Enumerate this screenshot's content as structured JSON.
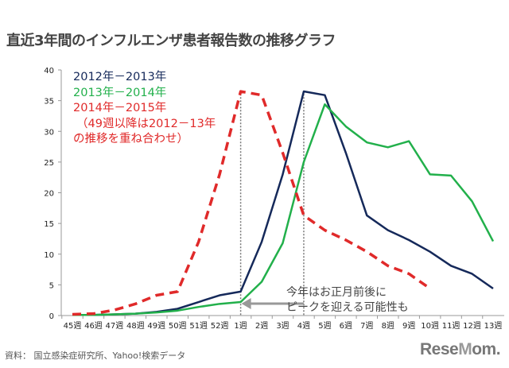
{
  "title": "直近3年間のインフルエンザ患者報告数の推移グラフ",
  "source": "資料： 国立感染症研究所、Yahoo!検索データ",
  "logo": "ReseMom",
  "chart_data": {
    "type": "line",
    "title": "直近3年間のインフルエンザ患者報告数の推移グラフ",
    "categories": [
      "45週",
      "46週",
      "47週",
      "48週",
      "49週",
      "50週",
      "51週",
      "52週",
      "1週",
      "2週",
      "3週",
      "4週",
      "5週",
      "6週",
      "7週",
      "8週",
      "9週",
      "10週",
      "11週",
      "12週",
      "13週"
    ],
    "ylim": [
      0,
      40
    ],
    "yticks": [
      0,
      5,
      10,
      15,
      20,
      25,
      30,
      35,
      40
    ],
    "grid": false,
    "legend_placement": "top-left",
    "series": [
      {
        "name": "2012年－2013年",
        "color": "#15295a",
        "style": "solid",
        "values": [
          0.1,
          0.1,
          0.2,
          0.3,
          0.6,
          1.1,
          2.2,
          3.3,
          3.9,
          12,
          23,
          36.5,
          35.9,
          26.5,
          16.3,
          13.9,
          12.3,
          10.4,
          8.1,
          6.8,
          4.4
        ]
      },
      {
        "name": "2013年－2014年",
        "color": "#22b04b",
        "style": "solid",
        "values": [
          0.1,
          0.1,
          0.2,
          0.3,
          0.5,
          0.8,
          1.4,
          1.9,
          2.2,
          5.5,
          11.8,
          25,
          34.4,
          30.8,
          28.2,
          27.4,
          28.4,
          23,
          22.8,
          18.6,
          12.1
        ]
      },
      {
        "name": "2014年－2015年",
        "color": "#e02a2a",
        "style": "dashed",
        "values": [
          0.2,
          0.3,
          0.9,
          1.9,
          3.3,
          3.9,
          12,
          23,
          36.5,
          35.9,
          26.5,
          16.3,
          13.9,
          12.3,
          10.4,
          8.1,
          6.8,
          4.4,
          null,
          null,
          null
        ]
      }
    ],
    "legend_note": [
      "（49週以降は2012－13年",
      "の推移を重ね合わせ）"
    ],
    "annotation": {
      "lines": [
        "今年はお正月前後に",
        "ピークを迎える可能性も"
      ],
      "arrow_from": "4週",
      "arrow_to": "1週",
      "arrow_color": "#999999",
      "marker_lines_at": [
        "1週",
        "4週"
      ]
    }
  }
}
